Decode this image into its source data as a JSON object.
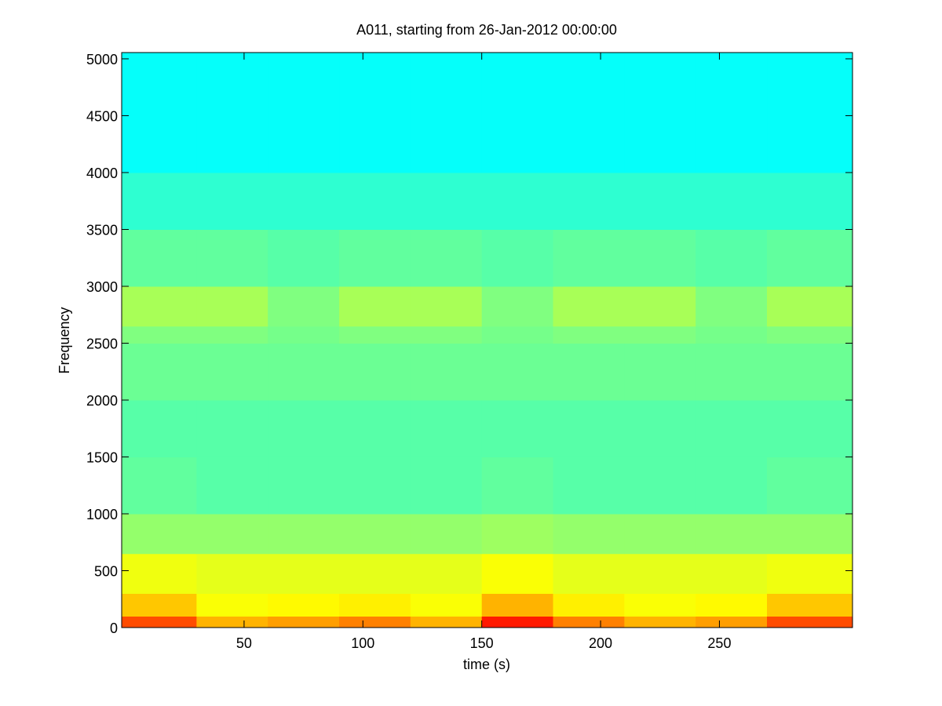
{
  "chart_data": {
    "type": "spectrogram",
    "title": "A011, starting from 26-Jan-2012 00:00:00",
    "xlabel": "time (s)",
    "ylabel": "Frequency",
    "xlim": [
      -1.5,
      306
    ],
    "ylim": [
      0,
      5055
    ],
    "xticks": [
      50,
      100,
      150,
      200,
      250
    ],
    "yticks": [
      0,
      500,
      1000,
      1500,
      2000,
      2500,
      3000,
      3500,
      4000,
      4500,
      5000
    ],
    "colormap": "jet",
    "x_bins": [
      -1.5,
      30,
      60,
      90,
      120,
      150,
      180,
      210,
      240,
      270,
      306
    ],
    "y_bins": [
      0,
      100,
      300,
      650,
      1000,
      1500,
      2000,
      2500,
      2650,
      3000,
      3500,
      4000,
      5055
    ],
    "values": [
      [
        0.8,
        0.7,
        0.72,
        0.75,
        0.7,
        0.85,
        0.75,
        0.7,
        0.72,
        0.8
      ],
      [
        0.68,
        0.62,
        0.63,
        0.64,
        0.62,
        0.7,
        0.64,
        0.62,
        0.63,
        0.68
      ],
      [
        0.61,
        0.6,
        0.6,
        0.6,
        0.6,
        0.62,
        0.6,
        0.6,
        0.6,
        0.61
      ],
      [
        0.52,
        0.52,
        0.52,
        0.52,
        0.52,
        0.53,
        0.52,
        0.52,
        0.52,
        0.52
      ],
      [
        0.47,
        0.46,
        0.46,
        0.46,
        0.46,
        0.47,
        0.46,
        0.46,
        0.46,
        0.47
      ],
      [
        0.46,
        0.46,
        0.46,
        0.46,
        0.46,
        0.46,
        0.46,
        0.46,
        0.46,
        0.46
      ],
      [
        0.48,
        0.48,
        0.48,
        0.48,
        0.48,
        0.48,
        0.48,
        0.48,
        0.48,
        0.48
      ],
      [
        0.5,
        0.5,
        0.49,
        0.5,
        0.5,
        0.49,
        0.5,
        0.5,
        0.49,
        0.5
      ],
      [
        0.54,
        0.54,
        0.5,
        0.54,
        0.54,
        0.5,
        0.54,
        0.54,
        0.5,
        0.54
      ],
      [
        0.47,
        0.47,
        0.46,
        0.47,
        0.47,
        0.46,
        0.47,
        0.47,
        0.46,
        0.47
      ],
      [
        0.42,
        0.42,
        0.42,
        0.42,
        0.42,
        0.42,
        0.42,
        0.42,
        0.42,
        0.42
      ],
      [
        0.38,
        0.38,
        0.38,
        0.38,
        0.38,
        0.38,
        0.38,
        0.38,
        0.38,
        0.38
      ]
    ]
  }
}
